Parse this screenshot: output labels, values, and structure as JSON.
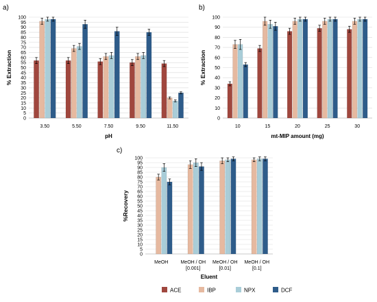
{
  "colors": {
    "ACE": "#a0473e",
    "IBP": "#e6b9a0",
    "NPX": "#a9cdd8",
    "DCF": "#2e5c8a",
    "grid": "#d9d9d9",
    "axis_text": "#000000"
  },
  "legend": {
    "placement": "bottom-center",
    "items": [
      {
        "key": "ACE",
        "label": "ACE"
      },
      {
        "key": "IBP",
        "label": "IBP"
      },
      {
        "key": "NPX",
        "label": "NPX"
      },
      {
        "key": "DCF",
        "label": "DCF"
      }
    ]
  },
  "chart_data": [
    {
      "panel_label": "a)",
      "type": "bar",
      "xlabel": "pH",
      "ylabel": "% Extraction",
      "ylim": [
        0,
        100
      ],
      "yticks": [
        0,
        5,
        10,
        15,
        20,
        25,
        30,
        35,
        40,
        45,
        50,
        55,
        60,
        65,
        70,
        75,
        80,
        85,
        90,
        95,
        100
      ],
      "grid": true,
      "categories": [
        "3.50",
        "5.50",
        "7.50",
        "9.50",
        "11.50"
      ],
      "series": [
        {
          "name": "ACE",
          "values": [
            57,
            57,
            56,
            55,
            54
          ],
          "errors": [
            3,
            3,
            3,
            3,
            3
          ]
        },
        {
          "name": "IBP",
          "values": [
            96,
            69,
            61,
            61,
            20
          ],
          "errors": [
            3,
            3,
            3,
            3,
            1
          ]
        },
        {
          "name": "NPX",
          "values": [
            98,
            71,
            62,
            62,
            17
          ],
          "errors": [
            2,
            3,
            3,
            3,
            1
          ]
        },
        {
          "name": "DCF",
          "values": [
            98,
            93,
            86,
            85,
            25
          ],
          "errors": [
            2,
            4,
            4,
            3,
            1
          ]
        }
      ]
    },
    {
      "panel_label": "b)",
      "type": "bar",
      "xlabel": "mt-MIP amount (mg)",
      "ylabel": "% Extraction",
      "ylim": [
        0,
        100
      ],
      "yticks": [
        0,
        10,
        20,
        30,
        40,
        50,
        60,
        70,
        80,
        90,
        100
      ],
      "grid": true,
      "categories": [
        "10",
        "15",
        "20",
        "25",
        "30"
      ],
      "series": [
        {
          "name": "ACE",
          "values": [
            34,
            69,
            86,
            89,
            88
          ],
          "errors": [
            2,
            3,
            3,
            3,
            3
          ]
        },
        {
          "name": "IBP",
          "values": [
            73,
            96,
            96,
            96,
            96
          ],
          "errors": [
            4,
            4,
            3,
            3,
            3
          ]
        },
        {
          "name": "NPX",
          "values": [
            73,
            93,
            98,
            98,
            98
          ],
          "errors": [
            5,
            4,
            2,
            2,
            2
          ]
        },
        {
          "name": "DCF",
          "values": [
            53,
            91,
            98,
            98,
            98
          ],
          "errors": [
            2,
            4,
            2,
            2,
            2
          ]
        }
      ]
    },
    {
      "panel_label": "c)",
      "type": "bar",
      "xlabel": "Eluent",
      "ylabel": "%Recovery",
      "ylim": [
        0,
        100
      ],
      "yticks": [
        0,
        5,
        10,
        15,
        20,
        25,
        30,
        35,
        40,
        45,
        50,
        55,
        60,
        65,
        70,
        75,
        80,
        85,
        90,
        95,
        100
      ],
      "grid": true,
      "categories": [
        [
          "MeOH"
        ],
        [
          "MeOH / OH",
          "[0.001]"
        ],
        [
          "MeOH / OH",
          "[0.01]"
        ],
        [
          "MeOH / OH",
          "[0.1]"
        ]
      ],
      "series": [
        {
          "name": "ACE",
          "values": [
            null,
            null,
            null,
            null
          ],
          "errors": [
            null,
            null,
            null,
            null
          ]
        },
        {
          "name": "IBP",
          "values": [
            80,
            93,
            97,
            98
          ],
          "errors": [
            3,
            4,
            3,
            2
          ]
        },
        {
          "name": "NPX",
          "values": [
            90,
            95,
            98,
            99
          ],
          "errors": [
            4,
            4,
            2,
            2
          ]
        },
        {
          "name": "DCF",
          "values": [
            75,
            91,
            99,
            99
          ],
          "errors": [
            3,
            4,
            2,
            2
          ]
        }
      ]
    }
  ]
}
